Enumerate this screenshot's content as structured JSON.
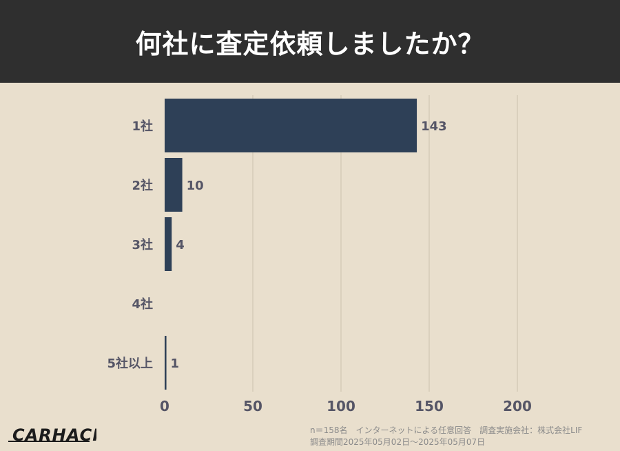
{
  "header": {
    "title": "何社に査定依頼しましたか？"
  },
  "chart_data": {
    "type": "bar",
    "orientation": "horizontal",
    "title": "何社に査定依頼しましたか？",
    "categories": [
      "1社",
      "2社",
      "3社",
      "4社",
      "5社以上"
    ],
    "values": [
      143,
      10,
      4,
      0,
      1
    ],
    "data_labels": [
      "143",
      "10",
      "4",
      "",
      "1"
    ],
    "xlim": [
      0,
      230
    ],
    "xticks": [
      0,
      50,
      100,
      150,
      200
    ],
    "grid": true,
    "bar_color": "#2e4057",
    "text_color": "#555566"
  },
  "footer": {
    "brand": "CARHACK",
    "note1": "n＝158名　インターネットによる任意回答　調査実施会社：株式会社LIF",
    "note2": "調査期間2025年05月02日〜2025年05月07日"
  }
}
